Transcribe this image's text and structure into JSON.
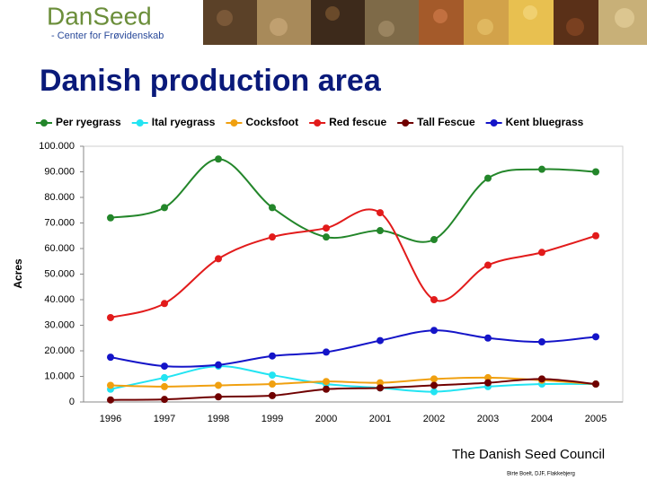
{
  "header": {
    "logo": "DanSeed",
    "logo_subtitle": "- Center for Frøvidenskab"
  },
  "chart_data": {
    "type": "line",
    "title": "Danish production area",
    "y_label": "Acres",
    "categories": [
      "1996",
      "1997",
      "1998",
      "1999",
      "2000",
      "2001",
      "2002",
      "2003",
      "2004",
      "2005"
    ],
    "series": [
      {
        "name": "Per ryegrass",
        "color": "#23862a",
        "values": [
          72000,
          76000,
          95000,
          76000,
          64500,
          67000,
          63500,
          87500,
          91000,
          90000
        ]
      },
      {
        "name": "Ital ryegrass",
        "color": "#22e4f2",
        "values": [
          5000,
          9500,
          14000,
          10500,
          7000,
          5500,
          4000,
          6000,
          7000,
          7000
        ]
      },
      {
        "name": "Cocksfoot",
        "color": "#f0a010",
        "values": [
          6500,
          6000,
          6500,
          7000,
          8000,
          7500,
          9000,
          9500,
          8500,
          7000
        ]
      },
      {
        "name": "Red fescue",
        "color": "#e21b1b",
        "values": [
          33000,
          38500,
          56000,
          64500,
          68000,
          74000,
          40000,
          53500,
          58500,
          65000
        ]
      },
      {
        "name": "Tall Fescue",
        "color": "#700000",
        "values": [
          800,
          1000,
          2000,
          2500,
          5000,
          5500,
          6500,
          7500,
          9000,
          7000
        ]
      },
      {
        "name": "Kent bluegrass",
        "color": "#1414c8",
        "values": [
          17500,
          14000,
          14500,
          18000,
          19500,
          24000,
          28000,
          25000,
          23500,
          25500
        ]
      }
    ],
    "ylim": [
      0,
      100000
    ],
    "yticks": [
      0,
      {
        "value": 10000,
        "label": "10.000"
      },
      {
        "value": 20000,
        "label": "20.000"
      },
      {
        "value": 30000,
        "label": "30.000"
      },
      {
        "value": 40000,
        "label": "40.000"
      },
      {
        "value": 50000,
        "label": "50.000"
      },
      {
        "value": 60000,
        "label": "60.000"
      },
      {
        "value": 70000,
        "label": "70.000"
      },
      {
        "value": 80000,
        "label": "80.000"
      },
      {
        "value": 90000,
        "label": "90.000"
      },
      {
        "value": 100000,
        "label": "100.000"
      }
    ],
    "smooth": true
  },
  "footer": {
    "organization": "The Danish Seed Council",
    "credit": "Birte Boelt, DJF, Flakkebjerg"
  }
}
